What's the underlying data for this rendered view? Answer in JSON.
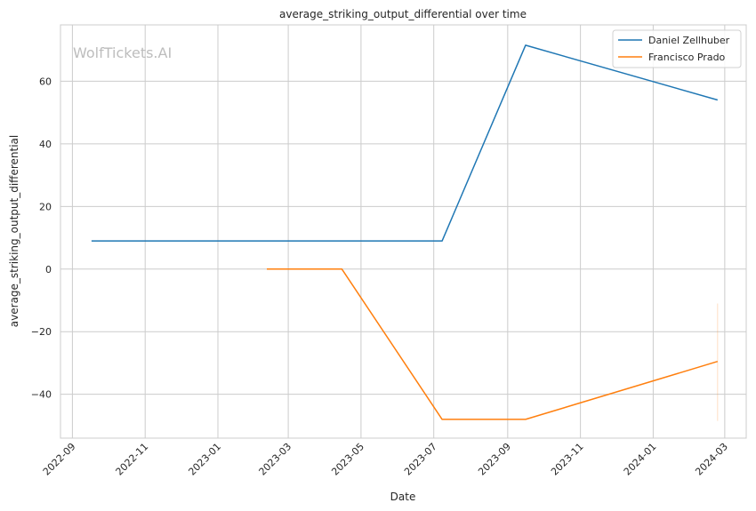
{
  "chart_data": {
    "type": "line",
    "title": "average_striking_output_differential over time",
    "xlabel": "Date",
    "ylabel": "average_striking_output_differential",
    "watermark": "WolfTickets.AI",
    "x_ticks": [
      "2022-09",
      "2022-11",
      "2023-01",
      "2023-03",
      "2023-05",
      "2023-07",
      "2023-09",
      "2023-11",
      "2024-01",
      "2024-03"
    ],
    "y_ticks": [
      60,
      40,
      20,
      0,
      -20,
      -40
    ],
    "y_tick_labels": [
      "60",
      "40",
      "20",
      "0",
      "−20",
      "−40"
    ],
    "xlim": [
      "2022-08-22",
      "2024-03-19"
    ],
    "ylim": [
      -54,
      78
    ],
    "grid": true,
    "legend_position": "top-right",
    "series": [
      {
        "name": "Daniel Zellhuber",
        "color": "#1f77b4",
        "points": [
          {
            "x": "2022-09-17",
            "y": 9
          },
          {
            "x": "2023-07-08",
            "y": 9
          },
          {
            "x": "2023-09-16",
            "y": 71.5
          },
          {
            "x": "2024-02-24",
            "y": 54
          }
        ]
      },
      {
        "name": "Francisco Prado",
        "color": "#ff7f0e",
        "points": [
          {
            "x": "2023-02-11",
            "y": 0
          },
          {
            "x": "2023-04-15",
            "y": 0
          },
          {
            "x": "2023-07-08",
            "y": -48
          },
          {
            "x": "2023-09-16",
            "y": -48
          },
          {
            "x": "2024-02-24",
            "y": -29.5
          }
        ],
        "band": {
          "x": "2024-02-24",
          "y_low": -48.5,
          "y_high": -11
        }
      }
    ]
  }
}
